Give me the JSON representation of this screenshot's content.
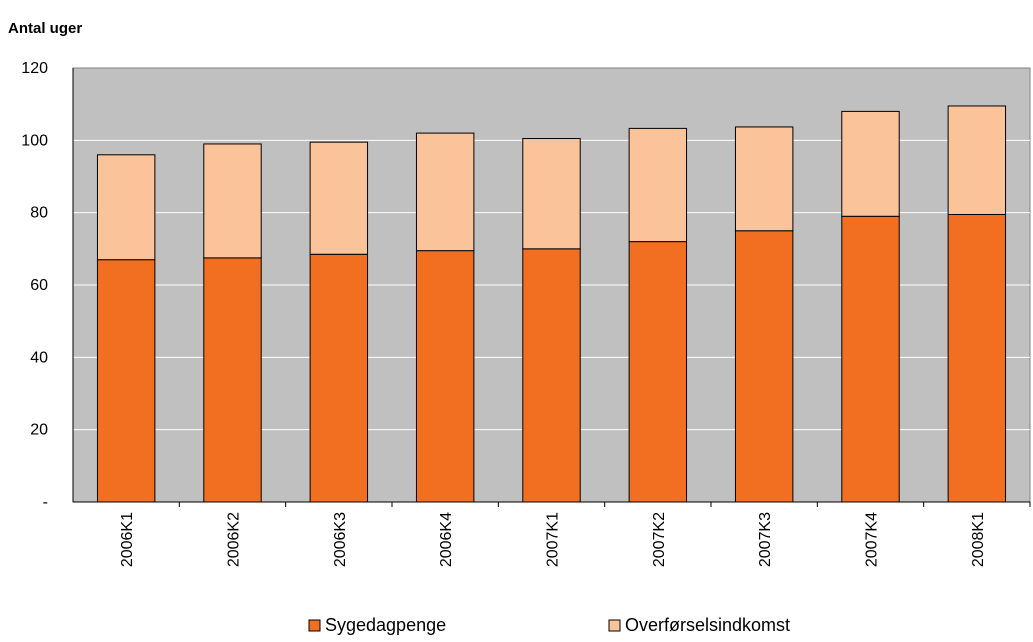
{
  "chart_data": {
    "type": "bar",
    "stacked": true,
    "title": "",
    "ylabel": "Antal uger",
    "xlabel": "",
    "categories": [
      "2006K1",
      "2006K2",
      "2006K3",
      "2006K4",
      "2007K1",
      "2007K2",
      "2007K3",
      "2007K4",
      "2008K1"
    ],
    "series": [
      {
        "name": "Sygedagpenge",
        "values": [
          67,
          67.5,
          68.5,
          69.5,
          70,
          72,
          75,
          79,
          79.5
        ],
        "color": "#f26f21"
      },
      {
        "name": "Overførselsindkomst",
        "values": [
          29,
          31.5,
          31,
          32.5,
          30.5,
          31.3,
          28.7,
          29,
          30
        ],
        "color": "#fbc39a"
      }
    ],
    "ylim": [
      0,
      120
    ],
    "yticks": [
      0,
      20,
      40,
      60,
      80,
      100,
      120
    ],
    "ytick_labels": [
      "-",
      "20",
      "40",
      "60",
      "80",
      "100",
      "120"
    ],
    "grid": true,
    "plot_background": "#c0c0c0",
    "legend_position": "bottom"
  }
}
